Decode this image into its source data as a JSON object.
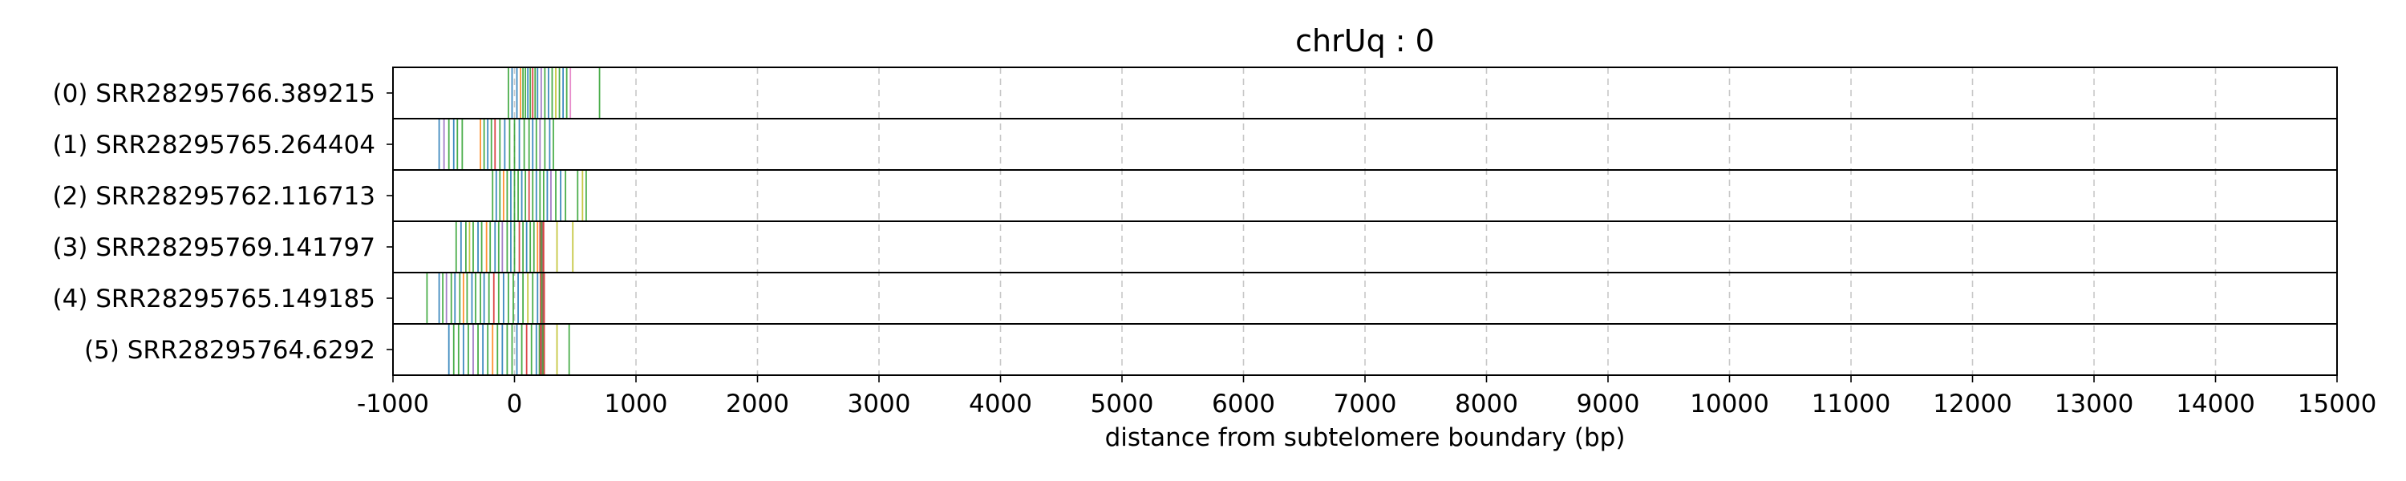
{
  "chart_data": {
    "type": "event-strip",
    "title": "chrUq : 0",
    "xlabel": "distance from subtelomere boundary (bp)",
    "xlim": [
      -1000,
      15000
    ],
    "xticks": [
      -1000,
      0,
      1000,
      2000,
      3000,
      4000,
      5000,
      6000,
      7000,
      8000,
      9000,
      10000,
      11000,
      12000,
      13000,
      14000,
      15000
    ],
    "xtick_labels": [
      "-1000",
      "0",
      "1000",
      "2000",
      "3000",
      "4000",
      "5000",
      "6000",
      "7000",
      "8000",
      "9000",
      "10000",
      "11000",
      "12000",
      "13000",
      "14000",
      "15000"
    ],
    "grid": "vertical dashed",
    "rows": [
      {
        "label": "(0) SRR28295766.389215",
        "events": [
          [
            -50,
            "#2ca02c"
          ],
          [
            -20,
            "#1f77b4"
          ],
          [
            20,
            "#1f77b4"
          ],
          [
            50,
            "#ff7f0e"
          ],
          [
            70,
            "#2ca02c"
          ],
          [
            90,
            "#2ca02c"
          ],
          [
            110,
            "#1f77b4"
          ],
          [
            130,
            "#2ca02c"
          ],
          [
            150,
            "#d62728"
          ],
          [
            170,
            "#2ca02c"
          ],
          [
            190,
            "#1f77b4"
          ],
          [
            220,
            "#9467bd"
          ],
          [
            250,
            "#2ca02c"
          ],
          [
            280,
            "#1f77b4"
          ],
          [
            310,
            "#2ca02c"
          ],
          [
            340,
            "#bcbd22"
          ],
          [
            370,
            "#2ca02c"
          ],
          [
            400,
            "#1f77b4"
          ],
          [
            430,
            "#2ca02c"
          ],
          [
            460,
            "#e377c2"
          ],
          [
            700,
            "#2ca02c"
          ]
        ]
      },
      {
        "label": "(1) SRR28295765.264404",
        "events": [
          [
            -620,
            "#1f77b4"
          ],
          [
            -580,
            "#9467bd"
          ],
          [
            -540,
            "#2ca02c"
          ],
          [
            -500,
            "#1f77b4"
          ],
          [
            -470,
            "#2ca02c"
          ],
          [
            -430,
            "#2ca02c"
          ],
          [
            -280,
            "#ff7f0e"
          ],
          [
            -250,
            "#2ca02c"
          ],
          [
            -220,
            "#1f77b4"
          ],
          [
            -190,
            "#2ca02c"
          ],
          [
            -160,
            "#d62728"
          ],
          [
            -120,
            "#2ca02c"
          ],
          [
            -80,
            "#1f77b4"
          ],
          [
            -40,
            "#2ca02c"
          ],
          [
            0,
            "#2ca02c"
          ],
          [
            40,
            "#1f77b4"
          ],
          [
            80,
            "#2ca02c"
          ],
          [
            120,
            "#2ca02c"
          ],
          [
            150,
            "#1f77b4"
          ],
          [
            180,
            "#2ca02c"
          ],
          [
            210,
            "#9467bd"
          ],
          [
            250,
            "#2ca02c"
          ],
          [
            290,
            "#1f77b4"
          ],
          [
            320,
            "#2ca02c"
          ]
        ]
      },
      {
        "label": "(2) SRR28295762.116713",
        "events": [
          [
            -180,
            "#2ca02c"
          ],
          [
            -150,
            "#1f77b4"
          ],
          [
            -120,
            "#2ca02c"
          ],
          [
            -90,
            "#ff7f0e"
          ],
          [
            -60,
            "#2ca02c"
          ],
          [
            -30,
            "#1f77b4"
          ],
          [
            0,
            "#2ca02c"
          ],
          [
            30,
            "#2ca02c"
          ],
          [
            60,
            "#1f77b4"
          ],
          [
            90,
            "#2ca02c"
          ],
          [
            120,
            "#d62728"
          ],
          [
            150,
            "#2ca02c"
          ],
          [
            180,
            "#1f77b4"
          ],
          [
            210,
            "#2ca02c"
          ],
          [
            240,
            "#2ca02c"
          ],
          [
            270,
            "#1f77b4"
          ],
          [
            300,
            "#9467bd"
          ],
          [
            340,
            "#2ca02c"
          ],
          [
            380,
            "#1f77b4"
          ],
          [
            420,
            "#2ca02c"
          ],
          [
            520,
            "#2ca02c"
          ],
          [
            560,
            "#bcbd22"
          ],
          [
            590,
            "#2ca02c"
          ]
        ]
      },
      {
        "label": "(3) SRR28295769.141797",
        "events": [
          [
            -480,
            "#2ca02c"
          ],
          [
            -440,
            "#1f77b4"
          ],
          [
            -400,
            "#2ca02c"
          ],
          [
            -370,
            "#bcbd22"
          ],
          [
            -340,
            "#2ca02c"
          ],
          [
            -300,
            "#1f77b4"
          ],
          [
            -270,
            "#2ca02c"
          ],
          [
            -230,
            "#ff7f0e"
          ],
          [
            -200,
            "#2ca02c"
          ],
          [
            -160,
            "#1f77b4"
          ],
          [
            -130,
            "#2ca02c"
          ],
          [
            -100,
            "#9467bd"
          ],
          [
            -60,
            "#2ca02c"
          ],
          [
            -30,
            "#1f77b4"
          ],
          [
            0,
            "#2ca02c"
          ],
          [
            40,
            "#d62728"
          ],
          [
            70,
            "#2ca02c"
          ],
          [
            100,
            "#1f77b4"
          ],
          [
            130,
            "#2ca02c"
          ],
          [
            160,
            "#2ca02c"
          ],
          [
            190,
            "#ff7f0e"
          ],
          [
            210,
            "#d62728"
          ],
          [
            220,
            "#2ca02c"
          ],
          [
            230,
            "#8c564b"
          ],
          [
            240,
            "#d62728"
          ],
          [
            350,
            "#bcbd22"
          ],
          [
            480,
            "#bcbd22"
          ]
        ]
      },
      {
        "label": "(4) SRR28295765.149185",
        "events": [
          [
            -720,
            "#2ca02c"
          ],
          [
            -620,
            "#1f77b4"
          ],
          [
            -590,
            "#2ca02c"
          ],
          [
            -560,
            "#9467bd"
          ],
          [
            -520,
            "#2ca02c"
          ],
          [
            -490,
            "#1f77b4"
          ],
          [
            -450,
            "#2ca02c"
          ],
          [
            -420,
            "#ff7f0e"
          ],
          [
            -390,
            "#2ca02c"
          ],
          [
            -350,
            "#1f77b4"
          ],
          [
            -320,
            "#2ca02c"
          ],
          [
            -280,
            "#2ca02c"
          ],
          [
            -250,
            "#1f77b4"
          ],
          [
            -210,
            "#2ca02c"
          ],
          [
            -170,
            "#d62728"
          ],
          [
            -130,
            "#2ca02c"
          ],
          [
            -90,
            "#1f77b4"
          ],
          [
            -50,
            "#2ca02c"
          ],
          [
            -10,
            "#2ca02c"
          ],
          [
            30,
            "#1f77b4"
          ],
          [
            70,
            "#2ca02c"
          ],
          [
            110,
            "#bcbd22"
          ],
          [
            150,
            "#2ca02c"
          ],
          [
            190,
            "#1f77b4"
          ],
          [
            215,
            "#d62728"
          ],
          [
            225,
            "#2ca02c"
          ],
          [
            235,
            "#8c564b"
          ],
          [
            245,
            "#d62728"
          ]
        ]
      },
      {
        "label": "(5) SRR28295764.6292",
        "events": [
          [
            -540,
            "#1f77b4"
          ],
          [
            -500,
            "#2ca02c"
          ],
          [
            -460,
            "#2ca02c"
          ],
          [
            -420,
            "#1f77b4"
          ],
          [
            -380,
            "#2ca02c"
          ],
          [
            -340,
            "#9467bd"
          ],
          [
            -300,
            "#2ca02c"
          ],
          [
            -260,
            "#1f77b4"
          ],
          [
            -220,
            "#2ca02c"
          ],
          [
            -180,
            "#ff7f0e"
          ],
          [
            -140,
            "#2ca02c"
          ],
          [
            -100,
            "#1f77b4"
          ],
          [
            -60,
            "#2ca02c"
          ],
          [
            -20,
            "#2ca02c"
          ],
          [
            20,
            "#1f77b4"
          ],
          [
            60,
            "#2ca02c"
          ],
          [
            100,
            "#d62728"
          ],
          [
            140,
            "#2ca02c"
          ],
          [
            180,
            "#1f77b4"
          ],
          [
            205,
            "#2ca02c"
          ],
          [
            215,
            "#d62728"
          ],
          [
            225,
            "#8c564b"
          ],
          [
            235,
            "#2ca02c"
          ],
          [
            245,
            "#d62728"
          ],
          [
            350,
            "#bcbd22"
          ],
          [
            450,
            "#2ca02c"
          ]
        ]
      }
    ]
  }
}
